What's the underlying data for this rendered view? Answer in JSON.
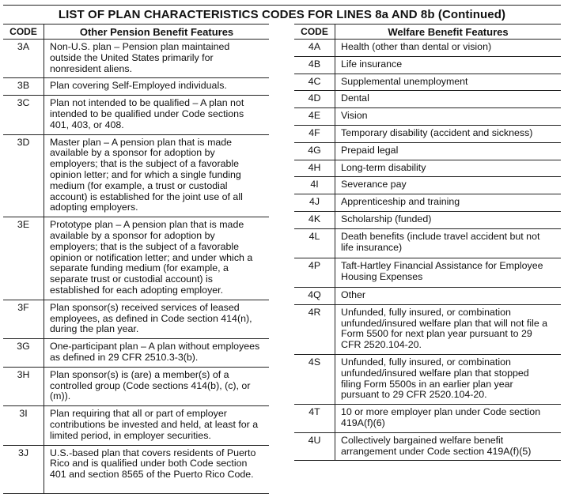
{
  "title": "LIST OF PLAN CHARACTERISTICS CODES FOR LINES 8a AND 8b (Continued)",
  "left_table": {
    "code_header": "CODE",
    "desc_header": "Other Pension Benefit Features",
    "rows": [
      {
        "code": "3A",
        "lines": [
          "Non-U.S. plan – Pension plan maintained",
          "outside the United States primarily for",
          "nonresident aliens."
        ]
      },
      {
        "code": "3B",
        "lines": [
          "Plan covering Self-Employed individuals."
        ]
      },
      {
        "code": "3C",
        "lines": [
          "Plan not intended to be qualified – A plan not",
          "intended to be qualified under Code sections",
          "401, 403, or 408."
        ]
      },
      {
        "code": "3D",
        "lines": [
          "Master plan – A pension plan that is made",
          "available by a sponsor for adoption by",
          "employers; that is the subject of a favorable",
          "opinion letter; and for which a single funding",
          "medium (for example, a trust or custodial",
          "account) is established for the joint use of all",
          "adopting employers."
        ]
      },
      {
        "code": "3E",
        "lines": [
          "Prototype plan – A pension plan that is made",
          "available by a sponsor for adoption by",
          "employers; that is the subject of a favorable",
          "opinion or notification letter; and under which a",
          "separate funding medium (for example, a",
          "separate trust or custodial account) is",
          "established for each adopting employer."
        ]
      },
      {
        "code": "3F",
        "lines": [
          "Plan sponsor(s) received services of leased",
          "employees, as defined in Code section 414(n),",
          "during the plan year."
        ]
      },
      {
        "code": "3G",
        "lines": [
          "One-participant plan – A plan without employees",
          "as defined in 29 CFR 2510.3-3(b)."
        ]
      },
      {
        "code": "3H",
        "lines": [
          "Plan sponsor(s) is (are) a member(s) of a",
          "controlled group (Code sections 414(b), (c), or",
          "(m))."
        ]
      },
      {
        "code": "3I",
        "lines": [
          "Plan requiring that all or part of employer",
          "contributions be invested and held, at least for a",
          "limited period, in employer securities."
        ]
      },
      {
        "code": "3J",
        "lines": [
          "U.S.-based plan that covers residents of Puerto",
          "Rico and is qualified under both Code section",
          "401 and section 8565 of the Puerto Rico Code."
        ]
      }
    ]
  },
  "right_table": {
    "code_header": "CODE",
    "desc_header": "Welfare Benefit Features",
    "rows": [
      {
        "code": "4A",
        "lines": [
          "Health (other than dental or vision)"
        ]
      },
      {
        "code": "4B",
        "lines": [
          "Life insurance"
        ]
      },
      {
        "code": "4C",
        "lines": [
          "Supplemental unemployment"
        ]
      },
      {
        "code": "4D",
        "lines": [
          "Dental"
        ]
      },
      {
        "code": "4E",
        "lines": [
          "Vision"
        ]
      },
      {
        "code": "4F",
        "lines": [
          "Temporary disability (accident and sickness)"
        ]
      },
      {
        "code": "4G",
        "lines": [
          "Prepaid legal"
        ]
      },
      {
        "code": "4H",
        "lines": [
          "Long-term disability"
        ]
      },
      {
        "code": "4I",
        "lines": [
          "Severance pay"
        ]
      },
      {
        "code": "4J",
        "lines": [
          "Apprenticeship and training"
        ]
      },
      {
        "code": "4K",
        "lines": [
          "Scholarship (funded)"
        ]
      },
      {
        "code": "4L",
        "lines": [
          "Death benefits (include travel accident but not",
          "life insurance)"
        ]
      },
      {
        "code": "4P",
        "lines": [
          "Taft-Hartley Financial Assistance for Employee",
          "Housing Expenses"
        ]
      },
      {
        "code": "4Q",
        "lines": [
          "Other"
        ]
      },
      {
        "code": "4R",
        "lines": [
          "Unfunded, fully insured, or combination",
          "unfunded/insured welfare plan that will not file a",
          "Form 5500 for next plan year pursuant to 29",
          "CFR 2520.104-20."
        ]
      },
      {
        "code": "4S",
        "lines": [
          "Unfunded, fully insured, or combination",
          "unfunded/insured welfare plan that stopped",
          "filing Form 5500s in an earlier plan year",
          "pursuant to 29 CFR 2520.104-20."
        ]
      },
      {
        "code": "4T",
        "lines": [
          "10 or more employer plan under Code section",
          "419A(f)(6)"
        ]
      },
      {
        "code": "4U",
        "lines": [
          "Collectively bargained welfare benefit",
          "arrangement under Code section 419A(f)(5)"
        ]
      }
    ]
  }
}
